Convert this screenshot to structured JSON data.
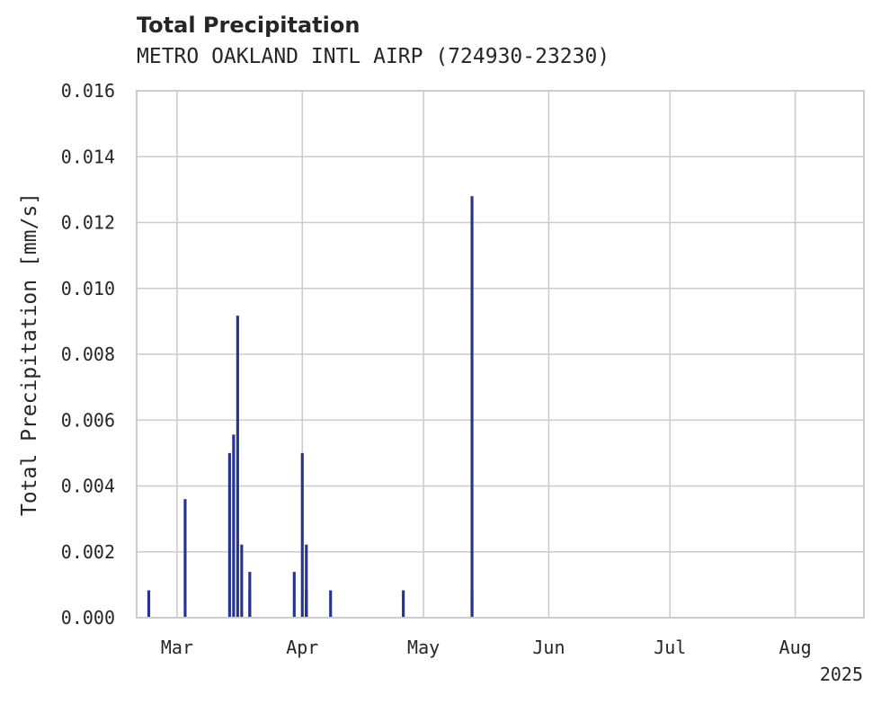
{
  "chart_data": {
    "type": "bar",
    "title": "Total Precipitation",
    "subtitle": "METRO OAKLAND INTL AIRP (724930-23230)",
    "xlabel": "",
    "ylabel": "Total Precipitation [mm/s]",
    "year_label": "2025",
    "ylim": [
      0,
      0.016
    ],
    "xlim": [
      "2025-02-19",
      "2025-08-18"
    ],
    "yticks": [
      "0.000",
      "0.002",
      "0.004",
      "0.006",
      "0.008",
      "0.010",
      "0.012",
      "0.014",
      "0.016"
    ],
    "xticks": [
      {
        "date": "2025-03-01",
        "label": "Mar"
      },
      {
        "date": "2025-04-01",
        "label": "Apr"
      },
      {
        "date": "2025-05-01",
        "label": "May"
      },
      {
        "date": "2025-06-01",
        "label": "Jun"
      },
      {
        "date": "2025-07-01",
        "label": "Jul"
      },
      {
        "date": "2025-08-01",
        "label": "Aug"
      }
    ],
    "grid": true,
    "bar_color": "#26348f",
    "bars": [
      {
        "x": "2025-02-22",
        "y": 0.00083
      },
      {
        "x": "2025-03-03",
        "y": 0.0036
      },
      {
        "x": "2025-03-14",
        "y": 0.005
      },
      {
        "x": "2025-03-15",
        "y": 0.00556
      },
      {
        "x": "2025-03-16",
        "y": 0.00917
      },
      {
        "x": "2025-03-17",
        "y": 0.00222
      },
      {
        "x": "2025-03-19",
        "y": 0.00083
      },
      {
        "x": "2025-03-19",
        "y": 0.00139
      },
      {
        "x": "2025-03-30",
        "y": 0.00139
      },
      {
        "x": "2025-04-02",
        "y": 0.00083
      },
      {
        "x": "2025-04-01",
        "y": 0.005
      },
      {
        "x": "2025-04-02",
        "y": 0.00222
      },
      {
        "x": "2025-04-02",
        "y": 0.00083
      },
      {
        "x": "2025-04-08",
        "y": 0.00083
      },
      {
        "x": "2025-04-26",
        "y": 0.00083
      },
      {
        "x": "2025-05-13",
        "y": 0.0128
      },
      {
        "x": "2025-05-13",
        "y": 0.00083
      }
    ]
  }
}
